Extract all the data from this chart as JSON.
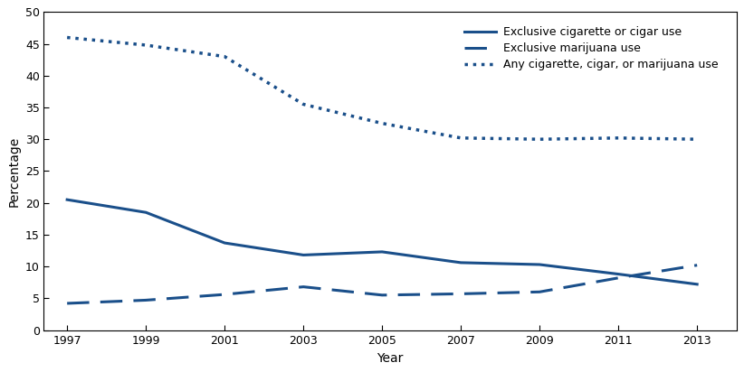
{
  "years": [
    1997,
    1999,
    2001,
    2003,
    2005,
    2007,
    2009,
    2011,
    2013
  ],
  "exclusive_cig_cigar": [
    20.5,
    18.5,
    13.7,
    11.8,
    12.3,
    10.6,
    10.3,
    8.8,
    7.2
  ],
  "exclusive_marijuana": [
    4.2,
    4.7,
    5.6,
    6.8,
    5.5,
    5.7,
    6.0,
    8.2,
    10.2
  ],
  "any_use": [
    46.0,
    44.8,
    43.0,
    35.5,
    32.5,
    30.2,
    30.0,
    30.2,
    30.0
  ],
  "color": "#1a4f8a",
  "xlabel": "Year",
  "ylabel": "Percentage",
  "ylim": [
    0,
    50
  ],
  "yticks": [
    0,
    5,
    10,
    15,
    20,
    25,
    30,
    35,
    40,
    45,
    50
  ],
  "xticks": [
    1997,
    1999,
    2001,
    2003,
    2005,
    2007,
    2009,
    2011,
    2013
  ],
  "legend_labels": [
    "Exclusive cigarette or cigar use",
    "Exclusive marijuana use",
    "Any cigarette, cigar, or marijuana use"
  ],
  "linewidth_solid": 2.2,
  "linewidth_dashed": 2.2,
  "linewidth_dotted": 2.5,
  "figsize": [
    8.22,
    4.12
  ],
  "dpi": 100
}
